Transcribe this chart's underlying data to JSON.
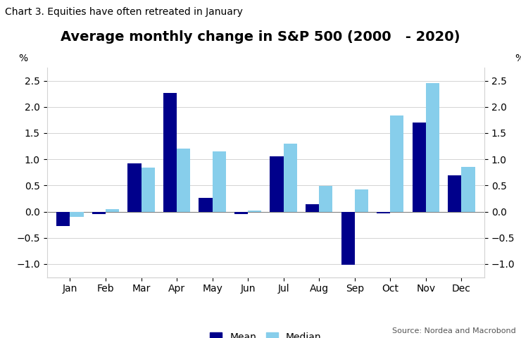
{
  "title": "Average monthly change in S&P 500 (2000   - 2020)",
  "subtitle": "Chart 3. Equities have often retreated in January",
  "source": "Source: Nordea and Macrobond",
  "months": [
    "Jan",
    "Feb",
    "Mar",
    "Apr",
    "May",
    "Jun",
    "Jul",
    "Aug",
    "Sep",
    "Oct",
    "Nov",
    "Dec"
  ],
  "mean": [
    -0.28,
    -0.05,
    0.92,
    2.27,
    0.27,
    -0.04,
    1.05,
    0.14,
    -1.02,
    -0.03,
    1.7,
    0.7
  ],
  "median": [
    -0.1,
    0.05,
    0.84,
    1.2,
    1.15,
    0.02,
    1.3,
    0.49,
    0.42,
    1.83,
    2.45,
    0.85
  ],
  "mean_color": "#00008B",
  "median_color": "#87CEEB",
  "ylim": [
    -1.25,
    2.75
  ],
  "yticks": [
    -1.0,
    -0.5,
    0.0,
    0.5,
    1.0,
    1.5,
    2.0,
    2.5
  ],
  "ylabel_left": "%",
  "ylabel_right": "%",
  "bar_width": 0.38,
  "background_color": "#ffffff",
  "plot_background": "#ffffff",
  "legend_labels": [
    "Mean",
    "Median"
  ],
  "title_fontsize": 14,
  "subtitle_fontsize": 10
}
